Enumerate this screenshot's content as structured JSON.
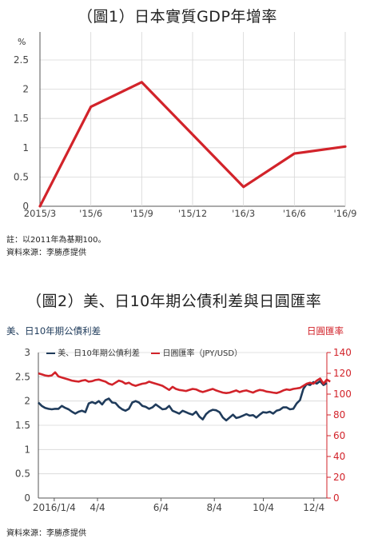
{
  "chart1": {
    "title": "（圖1）日本實質GDP年增率",
    "y_unit": "%",
    "note": "註：以2011年為基期100。",
    "source": "資料來源：李勝彥提供"
  },
  "chart2": {
    "title": "（圖2）美、日10年期公債利差與日圓匯率",
    "left_axis_label": "美、日10年期公債利差",
    "right_axis_label": "日圓匯率",
    "source": "資料來源：李勝彥提供"
  },
  "chart_data": [
    {
      "type": "line",
      "title": "（圖1）日本實質GDP年增率",
      "ylabel": "%",
      "categories": [
        "2015/3",
        "'15/6",
        "'15/9",
        "'15/12",
        "'16/3",
        "'16/6",
        "'16/9"
      ],
      "series": [
        {
          "points": [
            [
              0,
              0
            ],
            [
              1,
              1.7
            ],
            [
              2,
              2.12
            ],
            [
              4,
              0.33
            ],
            [
              5,
              0.9
            ],
            [
              6,
              1.02
            ]
          ],
          "color": "#d2232a"
        }
      ],
      "ylim": [
        0,
        2.5
      ],
      "yticks": [
        "0",
        "0.5",
        "1",
        "1.5",
        "2",
        "2.5"
      ],
      "grid": true
    },
    {
      "type": "line",
      "title": "（圖2）美、日10年期公債利差與日圓匯率",
      "xticks": [
        "2016/1/4",
        "4/4",
        "6/4",
        "8/4",
        "10/4",
        "12/4"
      ],
      "left_axis": {
        "label": "美、日10年期公債利差",
        "ylim": [
          0,
          3
        ],
        "ticks": [
          "0",
          "0.5",
          "1",
          "1.5",
          "2",
          "2.5",
          "3"
        ],
        "color": "#1f3b5b"
      },
      "right_axis": {
        "label": "日圓匯率",
        "ylim": [
          0,
          140
        ],
        "ticks": [
          "0",
          "20",
          "40",
          "60",
          "80",
          "100",
          "120",
          "140"
        ],
        "color": "#d2232a"
      },
      "series": [
        {
          "name": "美、日10年期公債利差",
          "axis": "left",
          "color": "#1f3b5b",
          "values": [
            1.97,
            1.9,
            1.86,
            1.84,
            1.83,
            1.84,
            1.84,
            1.9,
            1.86,
            1.83,
            1.78,
            1.74,
            1.78,
            1.8,
            1.77,
            1.95,
            1.98,
            1.95,
            2.0,
            1.93,
            2.02,
            2.05,
            1.97,
            1.96,
            1.88,
            1.83,
            1.8,
            1.84,
            1.97,
            2.0,
            1.97,
            1.9,
            1.88,
            1.84,
            1.87,
            1.93,
            1.88,
            1.83,
            1.84,
            1.9,
            1.8,
            1.77,
            1.74,
            1.8,
            1.77,
            1.74,
            1.72,
            1.78,
            1.68,
            1.62,
            1.73,
            1.79,
            1.82,
            1.81,
            1.77,
            1.66,
            1.6,
            1.66,
            1.72,
            1.65,
            1.67,
            1.7,
            1.73,
            1.7,
            1.71,
            1.66,
            1.72,
            1.77,
            1.76,
            1.78,
            1.74,
            1.8,
            1.82,
            1.87,
            1.87,
            1.83,
            1.84,
            1.95,
            2.02,
            2.25,
            2.35,
            2.33,
            2.39,
            2.36,
            2.41,
            2.33,
            2.37
          ]
        },
        {
          "name": "日圓匯率（JPY/USD）",
          "axis": "right",
          "color": "#d2232a",
          "values": [
            120,
            119,
            118,
            117.5,
            118,
            121,
            117,
            116,
            115,
            114,
            113,
            112.5,
            112,
            113,
            113.5,
            112,
            112.5,
            113.5,
            114,
            113,
            112,
            110,
            109,
            111,
            113,
            112,
            110,
            111,
            109,
            108,
            109,
            110,
            110.5,
            112,
            111,
            110,
            109,
            108,
            106,
            104,
            107,
            105,
            104,
            103.5,
            103,
            104,
            105,
            104.5,
            103,
            102,
            103,
            104,
            105,
            103.5,
            102.5,
            101.5,
            101,
            101.5,
            102.5,
            103.5,
            102,
            103,
            103.5,
            102.5,
            101.5,
            103,
            104,
            103.5,
            102.5,
            102,
            101.5,
            101,
            102,
            103.5,
            104.5,
            104,
            105,
            105.5,
            106,
            108,
            110,
            111,
            110,
            113,
            115,
            110,
            114,
            112
          ]
        }
      ],
      "grid": true
    }
  ]
}
